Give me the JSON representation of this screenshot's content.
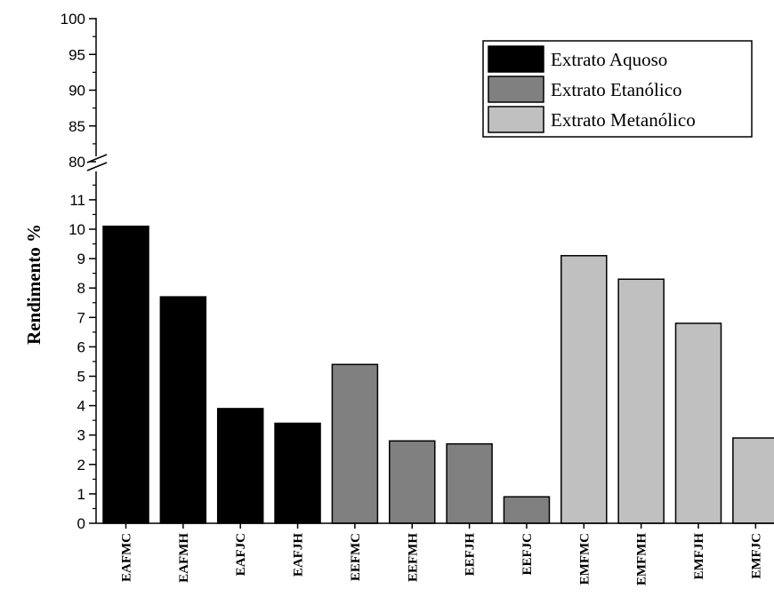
{
  "chart_data": {
    "type": "bar",
    "ylabel": "Rendimento %",
    "xlabel": "",
    "title": "",
    "categories": [
      "EAFMC",
      "EAFMH",
      "EAFJC",
      "EAFJH",
      "EEFMC",
      "EEFMH",
      "EEFJH",
      "EEFJC",
      "EMFMC",
      "EMFMH",
      "EMFJH",
      "EMFJC"
    ],
    "values": [
      10.1,
      7.7,
      3.9,
      3.4,
      5.4,
      2.8,
      2.7,
      0.9,
      9.1,
      8.3,
      6.8,
      2.9
    ],
    "groups": [
      0,
      0,
      0,
      0,
      1,
      1,
      1,
      1,
      2,
      2,
      2,
      2
    ],
    "series": [
      {
        "name": "Extrato Aquoso",
        "color": "#000000"
      },
      {
        "name": "Extrato Etanólico",
        "color": "#808080"
      },
      {
        "name": "Extrato Metanólico",
        "color": "#c0c0c0"
      }
    ],
    "y_axis_break": true,
    "lower_ylim": [
      0,
      11.5
    ],
    "upper_ylim": [
      80,
      100
    ],
    "lower_ticks": [
      0,
      1,
      2,
      3,
      4,
      5,
      6,
      7,
      8,
      9,
      10,
      11
    ],
    "upper_ticks": [
      80,
      85,
      90,
      95,
      100
    ],
    "grid": false,
    "legend_position": "top-right"
  }
}
